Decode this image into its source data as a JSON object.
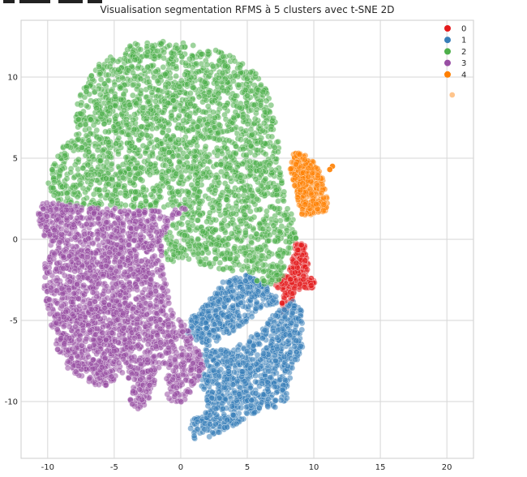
{
  "chart_data": {
    "type": "scatter",
    "title": "Visualisation segmentation RFMS à 5 clusters avec t-SNE 2D",
    "xlabel": "",
    "ylabel": "",
    "xlim": [
      -12,
      22
    ],
    "ylim": [
      -13.5,
      13.5
    ],
    "x_ticks": [
      -10,
      -5,
      0,
      5,
      10,
      15,
      20
    ],
    "y_ticks": [
      -10,
      -5,
      0,
      5,
      10
    ],
    "grid": true,
    "legend_position": "top-right",
    "series": [
      {
        "name": "0",
        "color": "#e41a1c",
        "region": [
          [
            8.6,
            -0.2
          ],
          [
            9.3,
            -0.3
          ],
          [
            9.6,
            -1.5
          ],
          [
            9.6,
            -2.3
          ],
          [
            10.3,
            -2.6
          ],
          [
            10.0,
            -3.0
          ],
          [
            9.0,
            -3.0
          ],
          [
            8.4,
            -3.6
          ],
          [
            8.1,
            -4.3
          ],
          [
            7.7,
            -4.6
          ],
          [
            7.6,
            -4.0
          ],
          [
            7.6,
            -3.0
          ],
          [
            7.1,
            -3.1
          ],
          [
            7.0,
            -2.6
          ],
          [
            7.8,
            -2.3
          ],
          [
            8.3,
            -1.6
          ]
        ]
      },
      {
        "name": "1",
        "color": "#377eb8",
        "region": [
          [
            1.8,
            -4.0
          ],
          [
            3.5,
            -2.3
          ],
          [
            5.0,
            -2.2
          ],
          [
            6.0,
            -2.6
          ],
          [
            7.0,
            -3.1
          ],
          [
            7.3,
            -3.9
          ],
          [
            6.0,
            -4.3
          ],
          [
            4.5,
            -5.5
          ],
          [
            3.0,
            -6.0
          ],
          [
            2.0,
            -6.9
          ],
          [
            4.2,
            -6.6
          ],
          [
            6.0,
            -5.6
          ],
          [
            7.0,
            -4.6
          ],
          [
            8.5,
            -3.8
          ],
          [
            9.2,
            -4.5
          ],
          [
            9.2,
            -6.5
          ],
          [
            8.5,
            -8.0
          ],
          [
            8.0,
            -9.0
          ],
          [
            8.0,
            -10.0
          ],
          [
            7.0,
            -10.5
          ],
          [
            6.0,
            -10.5
          ],
          [
            5.0,
            -11.0
          ],
          [
            4.0,
            -11.5
          ],
          [
            2.5,
            -12.1
          ],
          [
            1.1,
            -12.4
          ],
          [
            0.6,
            -11.6
          ],
          [
            1.0,
            -11.0
          ],
          [
            2.1,
            -10.5
          ],
          [
            1.7,
            -9.5
          ],
          [
            1.3,
            -8.5
          ],
          [
            1.5,
            -7.5
          ],
          [
            1.5,
            -6.4
          ],
          [
            0.5,
            -5.8
          ],
          [
            0.7,
            -4.8
          ],
          [
            1.3,
            -4.5
          ]
        ]
      },
      {
        "name": "2",
        "color": "#4daf4a",
        "region": [
          [
            -6.0,
            11.0
          ],
          [
            -4.5,
            11.8
          ],
          [
            -3.0,
            12.2
          ],
          [
            -1.5,
            12.3
          ],
          [
            0.5,
            12.1
          ],
          [
            2.5,
            11.8
          ],
          [
            4.0,
            11.2
          ],
          [
            5.5,
            10.4
          ],
          [
            6.5,
            9.2
          ],
          [
            7.1,
            7.5
          ],
          [
            7.4,
            5.5
          ],
          [
            7.6,
            3.5
          ],
          [
            8.1,
            2.2
          ],
          [
            8.6,
            1.0
          ],
          [
            8.8,
            0.0
          ],
          [
            8.5,
            -0.6
          ],
          [
            8.0,
            -1.2
          ],
          [
            7.8,
            -2.3
          ],
          [
            7.0,
            -2.7
          ],
          [
            6.2,
            -3.0
          ],
          [
            5.5,
            -2.7
          ],
          [
            4.8,
            -2.0
          ],
          [
            3.5,
            -2.0
          ],
          [
            2.0,
            -1.7
          ],
          [
            0.5,
            -1.5
          ],
          [
            -1.0,
            -1.3
          ],
          [
            -1.4,
            -0.7
          ],
          [
            -1.0,
            0.8
          ],
          [
            0.0,
            1.2
          ],
          [
            0.6,
            2.0
          ],
          [
            -1.0,
            2.0
          ],
          [
            -3.0,
            1.9
          ],
          [
            -5.0,
            2.0
          ],
          [
            -7.0,
            2.1
          ],
          [
            -8.5,
            2.2
          ],
          [
            -9.5,
            2.5
          ],
          [
            -10.0,
            3.5
          ],
          [
            -9.6,
            4.5
          ],
          [
            -9.0,
            5.5
          ],
          [
            -8.5,
            6.5
          ],
          [
            -8.0,
            7.8
          ],
          [
            -7.5,
            9.0
          ],
          [
            -6.8,
            10.2
          ]
        ]
      },
      {
        "name": "3",
        "color": "#984ea3",
        "region": [
          [
            -10.5,
            2.2
          ],
          [
            -9.5,
            2.4
          ],
          [
            -8.0,
            2.1
          ],
          [
            -6.0,
            1.9
          ],
          [
            -4.0,
            1.9
          ],
          [
            -2.5,
            1.8
          ],
          [
            -1.0,
            1.7
          ],
          [
            0.6,
            2.0
          ],
          [
            -0.8,
            1.2
          ],
          [
            -1.4,
            0.0
          ],
          [
            -1.3,
            -1.6
          ],
          [
            -0.7,
            -4.4
          ],
          [
            0.5,
            -5.5
          ],
          [
            1.3,
            -6.6
          ],
          [
            1.8,
            -7.7
          ],
          [
            1.3,
            -8.7
          ],
          [
            0.3,
            -10.0
          ],
          [
            -0.7,
            -10.2
          ],
          [
            -1.2,
            -9.3
          ],
          [
            -0.9,
            -7.6
          ],
          [
            -1.5,
            -7.8
          ],
          [
            -2.5,
            -10.1
          ],
          [
            -3.2,
            -10.5
          ],
          [
            -3.9,
            -10.0
          ],
          [
            -4.0,
            -8.0
          ],
          [
            -4.8,
            -8.5
          ],
          [
            -5.5,
            -9.1
          ],
          [
            -6.5,
            -9.0
          ],
          [
            -7.5,
            -8.5
          ],
          [
            -8.5,
            -8.0
          ],
          [
            -9.2,
            -7.0
          ],
          [
            -9.5,
            -6.0
          ],
          [
            -10.0,
            -4.5
          ],
          [
            -10.3,
            -3.0
          ],
          [
            -10.2,
            -1.5
          ],
          [
            -9.8,
            -0.8
          ],
          [
            -10.3,
            0.3
          ],
          [
            -10.8,
            1.3
          ]
        ]
      },
      {
        "name": "4",
        "color": "#ff7f00",
        "region": [
          [
            8.5,
            5.4
          ],
          [
            9.3,
            5.2
          ],
          [
            10.0,
            4.8
          ],
          [
            10.4,
            4.3
          ],
          [
            10.8,
            3.5
          ],
          [
            11.1,
            2.3
          ],
          [
            10.9,
            1.7
          ],
          [
            10.0,
            1.6
          ],
          [
            9.5,
            1.4
          ],
          [
            9.1,
            1.5
          ],
          [
            8.8,
            2.4
          ],
          [
            8.5,
            3.4
          ],
          [
            8.2,
            4.3
          ]
        ],
        "outliers": [
          [
            11.4,
            4.5
          ],
          [
            11.2,
            4.3
          ],
          [
            20.4,
            8.9
          ]
        ]
      }
    ]
  }
}
